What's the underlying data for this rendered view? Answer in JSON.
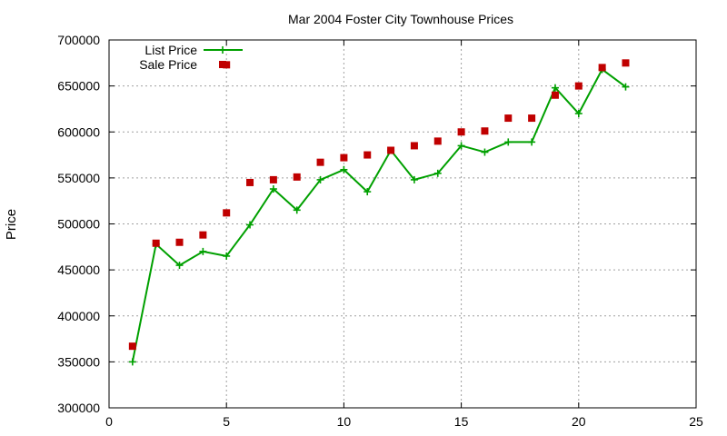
{
  "chart_data": {
    "type": "line",
    "title": "Mar 2004 Foster City Townhouse Prices",
    "xlabel": "",
    "ylabel": "Price",
    "xlim": [
      0,
      25
    ],
    "ylim": [
      300000,
      700000
    ],
    "xticks": [
      0,
      5,
      10,
      15,
      20,
      25
    ],
    "yticks": [
      300000,
      350000,
      400000,
      450000,
      500000,
      550000,
      600000,
      650000,
      700000
    ],
    "grid": true,
    "legend_position": "top-left",
    "series": [
      {
        "name": "List Price",
        "style": "linespoints",
        "marker": "plus",
        "color": "#00a000",
        "points": [
          [
            1,
            350000
          ],
          [
            2,
            478000
          ],
          [
            3,
            455000
          ],
          [
            4,
            470000
          ],
          [
            5,
            465000
          ],
          [
            6,
            499000
          ],
          [
            7,
            538000
          ],
          [
            8,
            515000
          ],
          [
            9,
            548000
          ],
          [
            10,
            559000
          ],
          [
            11,
            535000
          ],
          [
            12,
            580000
          ],
          [
            13,
            548000
          ],
          [
            14,
            555000
          ],
          [
            15,
            585000
          ],
          [
            16,
            578000
          ],
          [
            17,
            589000
          ],
          [
            18,
            589000
          ],
          [
            19,
            648000
          ],
          [
            20,
            620000
          ],
          [
            21,
            668000
          ],
          [
            22,
            649000
          ]
        ]
      },
      {
        "name": "Sale Price",
        "style": "points",
        "marker": "square",
        "color": "#c00000",
        "points": [
          [
            1,
            367000
          ],
          [
            2,
            479000
          ],
          [
            3,
            480000
          ],
          [
            4,
            488000
          ],
          [
            5,
            512000
          ],
          [
            5,
            673000
          ],
          [
            6,
            545000
          ],
          [
            7,
            548000
          ],
          [
            8,
            551000
          ],
          [
            9,
            567000
          ],
          [
            10,
            572000
          ],
          [
            11,
            575000
          ],
          [
            12,
            580000
          ],
          [
            13,
            585000
          ],
          [
            14,
            590000
          ],
          [
            15,
            600000
          ],
          [
            16,
            601000
          ],
          [
            17,
            615000
          ],
          [
            18,
            615000
          ],
          [
            19,
            640000
          ],
          [
            20,
            650000
          ],
          [
            21,
            670000
          ],
          [
            22,
            675000
          ]
        ]
      }
    ]
  }
}
